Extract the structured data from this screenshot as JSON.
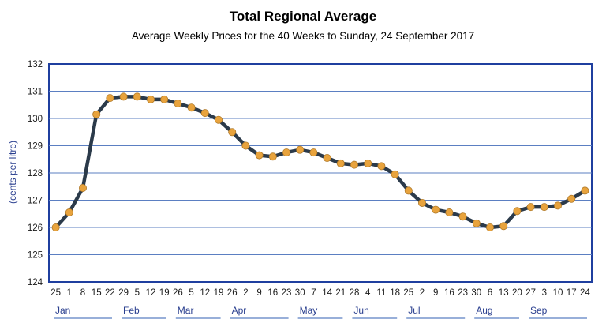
{
  "chart_data": {
    "type": "line",
    "title": "Total Regional Average",
    "subtitle": "Average Weekly Prices for the 40 Weeks to Sunday, 24 September 2017",
    "ylabel": "(cents per litre)",
    "xlabel": "",
    "ylim": [
      124,
      132
    ],
    "yticks": [
      "124",
      "125",
      "126",
      "127",
      "128",
      "129",
      "130",
      "131",
      "132"
    ],
    "grid": true,
    "legend": "none",
    "x": [
      "25",
      "1",
      "8",
      "15",
      "22",
      "29",
      "5",
      "12",
      "19",
      "26",
      "5",
      "12",
      "19",
      "26",
      "2",
      "9",
      "16",
      "23",
      "30",
      "7",
      "14",
      "21",
      "28",
      "4",
      "11",
      "18",
      "25",
      "2",
      "9",
      "16",
      "23",
      "30",
      "6",
      "13",
      "20",
      "27",
      "3",
      "10",
      "17",
      "24"
    ],
    "series": [
      {
        "values": [
          126.0,
          126.55,
          127.45,
          130.15,
          130.75,
          130.8,
          130.8,
          130.7,
          130.7,
          130.55,
          130.4,
          130.2,
          129.95,
          129.5,
          129.0,
          128.65,
          128.6,
          128.75,
          128.85,
          128.75,
          128.55,
          128.35,
          128.3,
          128.35,
          128.25,
          127.95,
          127.35,
          126.9,
          126.65,
          126.55,
          126.4,
          126.15,
          126.0,
          126.05,
          126.6,
          126.75,
          126.75,
          126.8,
          127.05,
          127.35
        ]
      }
    ],
    "months": [
      {
        "label": "Jan",
        "start": 0,
        "end": 4
      },
      {
        "label": "Feb",
        "start": 5,
        "end": 8
      },
      {
        "label": "Mar",
        "start": 9,
        "end": 12
      },
      {
        "label": "Apr",
        "start": 13,
        "end": 17
      },
      {
        "label": "May",
        "start": 18,
        "end": 21
      },
      {
        "label": "Jun",
        "start": 22,
        "end": 25
      },
      {
        "label": "Jul",
        "start": 26,
        "end": 30
      },
      {
        "label": "Aug",
        "start": 31,
        "end": 34
      },
      {
        "label": "Sep",
        "start": 35,
        "end": 39
      }
    ],
    "colors": {
      "line": "#2b3a4a",
      "marker": "#e8a33d",
      "markerEdge": "#b07a2a",
      "grid": "#5b7fc2",
      "frame": "#1f3f9f",
      "months": "#2a3f8f"
    }
  }
}
